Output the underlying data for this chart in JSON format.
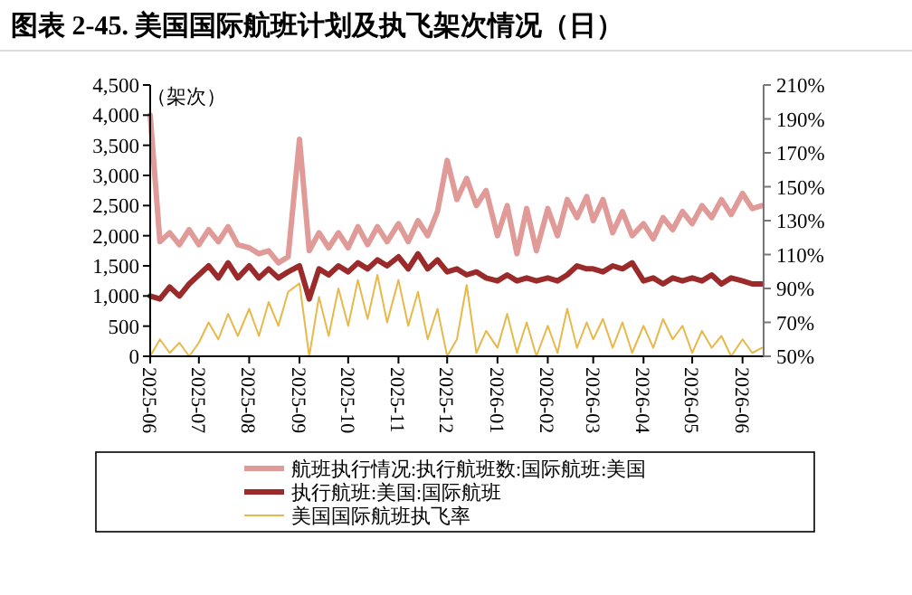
{
  "chart_data": {
    "type": "line",
    "title": "图表 2-45. 美国国际航班计划及执飞架次情况（日）",
    "ylabel": "（架次）",
    "x": [
      "2025-06-01",
      "2025-06-07",
      "2025-06-13",
      "2025-06-19",
      "2025-06-25",
      "2025-07-01",
      "2025-07-07",
      "2025-07-13",
      "2025-07-19",
      "2025-07-25",
      "2025-08-01",
      "2025-08-07",
      "2025-08-13",
      "2025-08-19",
      "2025-08-25",
      "2025-09-01",
      "2025-09-07",
      "2025-09-13",
      "2025-09-19",
      "2025-09-25",
      "2025-10-01",
      "2025-10-07",
      "2025-10-13",
      "2025-10-19",
      "2025-10-25",
      "2025-11-01",
      "2025-11-07",
      "2025-11-13",
      "2025-11-19",
      "2025-11-25",
      "2025-12-01",
      "2025-12-07",
      "2025-12-13",
      "2025-12-19",
      "2025-12-25",
      "2026-01-01",
      "2026-01-07",
      "2026-01-13",
      "2026-01-19",
      "2026-01-25",
      "2026-02-01",
      "2026-02-07",
      "2026-02-13",
      "2026-02-19",
      "2026-02-25",
      "2026-03-01",
      "2026-03-07",
      "2026-03-13",
      "2026-03-19",
      "2026-03-25",
      "2026-04-01",
      "2026-04-07",
      "2026-04-13",
      "2026-04-19",
      "2026-04-25",
      "2026-05-01",
      "2026-05-07",
      "2026-05-13",
      "2026-05-19",
      "2026-05-25",
      "2026-06-01",
      "2026-06-07",
      "2026-06-13"
    ],
    "series": [
      {
        "name": "航班执行情况:执行航班数:国际航班:美国",
        "color": "#e09a98",
        "values": [
          4000,
          1900,
          2050,
          1850,
          2100,
          1850,
          2100,
          1900,
          2150,
          1850,
          1800,
          1700,
          1750,
          1550,
          1650,
          3600,
          1750,
          2050,
          1800,
          2050,
          1800,
          2150,
          1850,
          2150,
          1900,
          2200,
          1900,
          2250,
          2000,
          2400,
          3250,
          2600,
          2950,
          2500,
          2750,
          2000,
          2500,
          1700,
          2450,
          1750,
          2450,
          2000,
          2600,
          2300,
          2650,
          2250,
          2600,
          2050,
          2400,
          2000,
          2200,
          1950,
          2300,
          2100,
          2400,
          2200,
          2500,
          2300,
          2600,
          2350,
          2700,
          2450,
          2500
        ]
      },
      {
        "name": "执行航班:美国:国际航班",
        "color": "#9b2b2b",
        "values": [
          1000,
          950,
          1150,
          1000,
          1200,
          1350,
          1500,
          1300,
          1550,
          1300,
          1500,
          1300,
          1450,
          1300,
          1400,
          1500,
          950,
          1450,
          1350,
          1500,
          1400,
          1550,
          1450,
          1600,
          1500,
          1650,
          1450,
          1700,
          1450,
          1600,
          1400,
          1450,
          1350,
          1400,
          1300,
          1250,
          1350,
          1250,
          1300,
          1250,
          1300,
          1250,
          1350,
          1500,
          1450,
          1450,
          1400,
          1500,
          1450,
          1550,
          1250,
          1300,
          1200,
          1300,
          1250,
          1300,
          1250,
          1350,
          1200,
          1300,
          1250,
          1200,
          1200
        ]
      },
      {
        "name": "美国国际航班执飞率",
        "color": "#e8b84a",
        "axis": "y2",
        "values": [
          50,
          60,
          52,
          58,
          50,
          58,
          70,
          60,
          75,
          62,
          78,
          62,
          82,
          68,
          88,
          93,
          50,
          85,
          62,
          90,
          68,
          95,
          72,
          98,
          70,
          95,
          68,
          88,
          60,
          78,
          50,
          60,
          92,
          52,
          65,
          55,
          75,
          52,
          70,
          50,
          68,
          52,
          78,
          55,
          70,
          60,
          72,
          55,
          70,
          52,
          68,
          55,
          72,
          60,
          68,
          52,
          65,
          55,
          62,
          50,
          60,
          52,
          55
        ]
      }
    ],
    "xlim": [
      "2025-06-01",
      "2026-06-14"
    ],
    "xticks": [
      "2025-06",
      "2025-07",
      "2025-08",
      "2025-09",
      "2025-10",
      "2025-11",
      "2025-12",
      "2026-01",
      "2026-02",
      "2026-03",
      "2026-04",
      "2026-05",
      "2026-06"
    ],
    "ylim": [
      0,
      4500
    ],
    "yticks": [
      0,
      500,
      {
        "value": 1000,
        "label": "1,000"
      },
      {
        "value": 1500,
        "label": "1,500"
      },
      {
        "value": 2000,
        "label": "2,000"
      },
      {
        "value": 2500,
        "label": "2,500"
      },
      {
        "value": 3000,
        "label": "3,000"
      },
      {
        "value": 3500,
        "label": "3,500"
      },
      {
        "value": 4000,
        "label": "4,000"
      },
      {
        "value": 4500,
        "label": "4,500"
      }
    ],
    "y2lim": [
      50,
      210
    ],
    "y2ticks": [
      {
        "value": 50,
        "label": "50%"
      },
      {
        "value": 70,
        "label": "70%"
      },
      {
        "value": 90,
        "label": "90%"
      },
      {
        "value": 110,
        "label": "110%"
      },
      {
        "value": 130,
        "label": "130%"
      },
      {
        "value": 150,
        "label": "150%"
      },
      {
        "value": 170,
        "label": "170%"
      },
      {
        "value": 190,
        "label": "190%"
      },
      {
        "value": 210,
        "label": "210%"
      }
    ],
    "legend": "bottom",
    "grid": false,
    "marker": "none",
    "line_style": "solid"
  }
}
